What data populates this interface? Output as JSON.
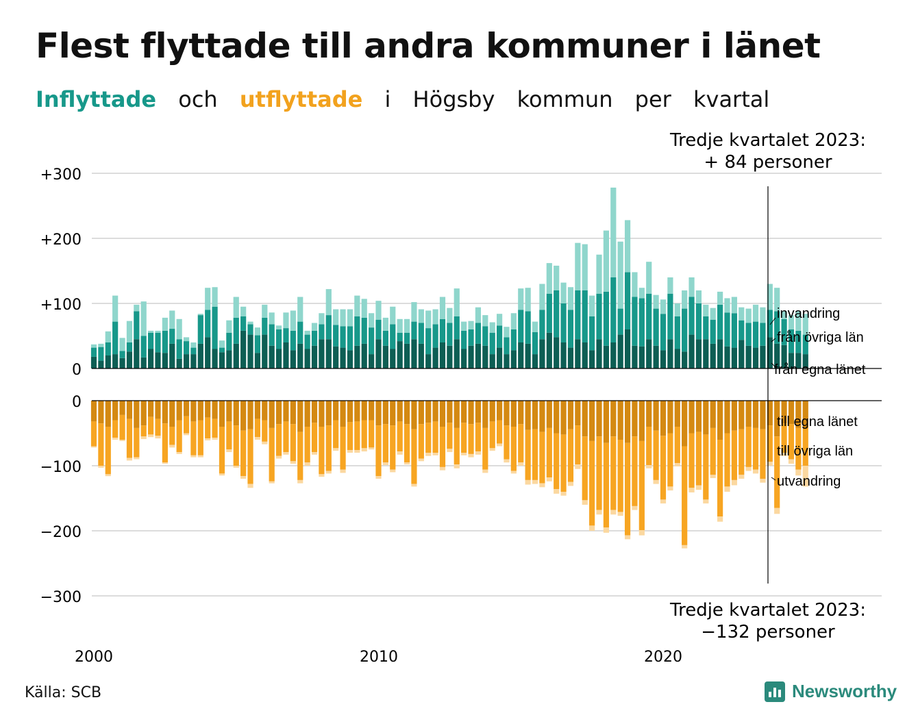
{
  "title": "Flest flyttade till andra kommuner i länet",
  "subtitle": {
    "in_word": "Inflyttade",
    "and": "och",
    "out_word": "utflyttade",
    "rest": [
      "i",
      "Högsby",
      "kommun",
      "per",
      "kvartal"
    ]
  },
  "annotation_top": [
    "Tredje kvartalet 2023:",
    "+ 84 personer"
  ],
  "annotation_bottom": [
    "Tredje kvartalet 2023:",
    "−132 personer"
  ],
  "source": "Källa: SCB",
  "logo_text": "Newsworthy",
  "colors": {
    "in_egna": "#0d5e54",
    "in_ovriga": "#17988a",
    "in_invandring": "#8fd6cc",
    "out_egna": "#d48912",
    "out_ovriga": "#f7a522",
    "out_utvandring": "#fbd8a0",
    "grid": "#dcdcdc",
    "zero": "#000000",
    "in_title": "#17988a",
    "out_title": "#f2a21e"
  },
  "chart_data": {
    "type": "bar",
    "x_start": {
      "year": 2000,
      "quarter": 1
    },
    "x_end": {
      "year": 2023,
      "quarter": 3
    },
    "xlabels": [
      "2000",
      "2010",
      "2020"
    ],
    "ylim": [
      -300,
      300
    ],
    "yticks_top": [
      "+300",
      "+200",
      "+100",
      "0"
    ],
    "yticks_bottom": [
      "0",
      "−100",
      "−200",
      "−300"
    ],
    "inflow_labels": [
      "invandring",
      "från övriga län",
      "från egna länet"
    ],
    "outflow_labels": [
      "till egna länet",
      "till övriga län",
      "utvandring"
    ],
    "inflow_totals": [
      37,
      38,
      57,
      112,
      47,
      73,
      98,
      103,
      58,
      58,
      78,
      89,
      76,
      48,
      40,
      84,
      124,
      125,
      43,
      74,
      110,
      95,
      72,
      63,
      98,
      86,
      66,
      86,
      89,
      110,
      58,
      70,
      85,
      122,
      91,
      91,
      91,
      112,
      107,
      85,
      104,
      78,
      95,
      76,
      76,
      102,
      91,
      89,
      91,
      110,
      93,
      123,
      72,
      73,
      94,
      82,
      71,
      84,
      64,
      85,
      123,
      124,
      72,
      130,
      162,
      158,
      132,
      125,
      193,
      191,
      112,
      175,
      212,
      278,
      195,
      228,
      148,
      124,
      164,
      113,
      106,
      140,
      100,
      120,
      140,
      120,
      98,
      93,
      118,
      108,
      110,
      94,
      92,
      98,
      94,
      130,
      124,
      88,
      82,
      88,
      84
    ],
    "inflow_egna": [
      18,
      12,
      20,
      22,
      16,
      26,
      45,
      17,
      30,
      25,
      24,
      38,
      15,
      22,
      22,
      38,
      48,
      30,
      25,
      28,
      38,
      58,
      52,
      24,
      52,
      35,
      30,
      40,
      28,
      38,
      30,
      35,
      45,
      45,
      34,
      32,
      28,
      35,
      38,
      22,
      45,
      35,
      30,
      42,
      38,
      45,
      38,
      22,
      32,
      40,
      35,
      45,
      30,
      35,
      38,
      35,
      22,
      32,
      22,
      28,
      40,
      38,
      22,
      45,
      55,
      48,
      40,
      32,
      45,
      40,
      28,
      45,
      35,
      40,
      52,
      60,
      35,
      34,
      45,
      35,
      28,
      45,
      30,
      26,
      52,
      45,
      45,
      38,
      45,
      34,
      32,
      44,
      35,
      32,
      35,
      48,
      38,
      36,
      24,
      24,
      22
    ],
    "inflow_ovriga": [
      32,
      33,
      40,
      72,
      27,
      40,
      88,
      50,
      55,
      55,
      58,
      61,
      45,
      42,
      32,
      82,
      90,
      95,
      32,
      55,
      78,
      80,
      68,
      51,
      78,
      68,
      60,
      62,
      58,
      72,
      52,
      58,
      68,
      82,
      67,
      65,
      65,
      80,
      78,
      63,
      75,
      58,
      68,
      55,
      55,
      72,
      70,
      62,
      68,
      76,
      70,
      80,
      58,
      60,
      70,
      65,
      55,
      66,
      48,
      60,
      90,
      88,
      56,
      90,
      115,
      120,
      100,
      90,
      120,
      120,
      80,
      115,
      118,
      140,
      92,
      148,
      110,
      108,
      115,
      92,
      84,
      115,
      80,
      92,
      110,
      100,
      80,
      75,
      98,
      86,
      85,
      74,
      70,
      72,
      70,
      90,
      88,
      76,
      60,
      58,
      52
    ],
    "outflow_totals": [
      -72,
      -103,
      -116,
      -60,
      -62,
      -92,
      -90,
      -59,
      -56,
      -58,
      -97,
      -72,
      -82,
      -53,
      -87,
      -87,
      -61,
      -60,
      -115,
      -79,
      -103,
      -120,
      -134,
      -60,
      -67,
      -127,
      -89,
      -83,
      -97,
      -127,
      -100,
      -83,
      -117,
      -112,
      -77,
      -111,
      -80,
      -80,
      -78,
      -75,
      -120,
      -99,
      -110,
      -83,
      -98,
      -132,
      -93,
      -85,
      -84,
      -107,
      -79,
      -104,
      -84,
      -87,
      -83,
      -111,
      -77,
      -70,
      -95,
      -112,
      -100,
      -129,
      -128,
      -133,
      -124,
      -143,
      -146,
      -131,
      -105,
      -160,
      -200,
      -175,
      -203,
      -175,
      -177,
      -213,
      -168,
      -207,
      -104,
      -128,
      -158,
      -138,
      -101,
      -227,
      -141,
      -137,
      -158,
      -119,
      -186,
      -140,
      -130,
      -120,
      -108,
      -112,
      -126,
      -100,
      -174,
      -85,
      -97,
      -115,
      -132
    ],
    "outflow_egna": [
      -32,
      -35,
      -40,
      -30,
      -22,
      -28,
      -42,
      -38,
      -25,
      -28,
      -35,
      -40,
      -30,
      -24,
      -32,
      -30,
      -26,
      -28,
      -40,
      -32,
      -38,
      -46,
      -44,
      -28,
      -30,
      -42,
      -36,
      -32,
      -36,
      -48,
      -40,
      -34,
      -40,
      -38,
      -30,
      -40,
      -33,
      -32,
      -30,
      -30,
      -38,
      -36,
      -38,
      -32,
      -36,
      -44,
      -36,
      -34,
      -32,
      -40,
      -34,
      -42,
      -34,
      -36,
      -34,
      -42,
      -32,
      -30,
      -38,
      -40,
      -36,
      -45,
      -44,
      -48,
      -42,
      -50,
      -52,
      -44,
      -38,
      -55,
      -62,
      -55,
      -65,
      -55,
      -60,
      -65,
      -55,
      -62,
      -40,
      -46,
      -54,
      -50,
      -40,
      -70,
      -50,
      -48,
      -52,
      -42,
      -60,
      -50,
      -46,
      -44,
      -40,
      -42,
      -44,
      -38,
      -55,
      -35,
      -36,
      -42,
      -42
    ],
    "outflow_ovriga": [
      -70,
      -100,
      -113,
      -57,
      -60,
      -88,
      -87,
      -55,
      -52,
      -54,
      -95,
      -68,
      -79,
      -50,
      -84,
      -84,
      -58,
      -57,
      -112,
      -75,
      -100,
      -116,
      -128,
      -56,
      -63,
      -124,
      -85,
      -79,
      -93,
      -122,
      -95,
      -79,
      -113,
      -108,
      -73,
      -106,
      -76,
      -76,
      -73,
      -72,
      -116,
      -95,
      -106,
      -78,
      -95,
      -128,
      -89,
      -80,
      -80,
      -102,
      -74,
      -98,
      -80,
      -82,
      -78,
      -106,
      -73,
      -66,
      -90,
      -108,
      -95,
      -122,
      -122,
      -127,
      -118,
      -136,
      -140,
      -125,
      -98,
      -153,
      -192,
      -168,
      -195,
      -168,
      -171,
      -207,
      -162,
      -199,
      -99,
      -122,
      -152,
      -132,
      -96,
      -222,
      -134,
      -130,
      -152,
      -114,
      -178,
      -132,
      -122,
      -114,
      -102,
      -106,
      -120,
      -94,
      -165,
      -80,
      -90,
      -106,
      -100
    ]
  }
}
